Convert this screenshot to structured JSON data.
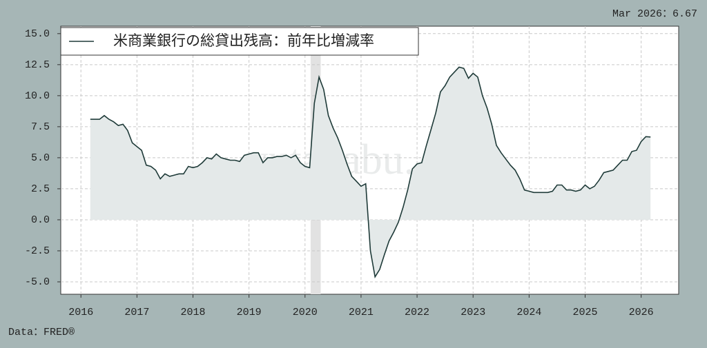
{
  "chart_data": {
    "type": "area-line",
    "annotation": "Mar 2026：6.67",
    "source": "Data：FRED®",
    "watermark": "yutakabu. com",
    "legend": "upper left",
    "grid": true,
    "shaded_regions": [
      [
        2020.1,
        2020.28
      ]
    ],
    "xlim": [
      2015.64,
      2026.67
    ],
    "xticks": [
      2016,
      2017,
      2018,
      2019,
      2020,
      2021,
      2022,
      2023,
      2024,
      2025,
      2026
    ],
    "ylim": [
      -6,
      15.6
    ],
    "yticks": [
      {
        "value": -5,
        "label": "-5.0"
      },
      {
        "value": -2.5,
        "label": "-2.5"
      },
      {
        "value": 0,
        "label": "0.0"
      },
      {
        "value": 2.5,
        "label": "2.5"
      },
      {
        "value": 5,
        "label": "5.0"
      },
      {
        "value": 7.5,
        "label": "7.5"
      },
      {
        "value": 10,
        "label": "10.0"
      },
      {
        "value": 12.5,
        "label": "12.5"
      },
      {
        "value": 15,
        "label": "15.0"
      }
    ],
    "x": [
      2016.167,
      2016.25,
      2016.333,
      2016.417,
      2016.5,
      2016.583,
      2016.667,
      2016.75,
      2016.833,
      2016.917,
      2017,
      2017.083,
      2017.167,
      2017.25,
      2017.333,
      2017.417,
      2017.5,
      2017.583,
      2017.667,
      2017.75,
      2017.833,
      2017.917,
      2018,
      2018.083,
      2018.167,
      2018.25,
      2018.333,
      2018.417,
      2018.5,
      2018.583,
      2018.667,
      2018.75,
      2018.833,
      2018.917,
      2019,
      2019.083,
      2019.167,
      2019.25,
      2019.333,
      2019.417,
      2019.5,
      2019.583,
      2019.667,
      2019.75,
      2019.833,
      2019.917,
      2020,
      2020.083,
      2020.167,
      2020.25,
      2020.333,
      2020.417,
      2020.5,
      2020.583,
      2020.667,
      2020.75,
      2020.833,
      2020.917,
      2021,
      2021.083,
      2021.167,
      2021.25,
      2021.333,
      2021.417,
      2021.5,
      2021.583,
      2021.667,
      2021.75,
      2021.833,
      2021.917,
      2022,
      2022.083,
      2022.167,
      2022.25,
      2022.333,
      2022.417,
      2022.5,
      2022.583,
      2022.667,
      2022.75,
      2022.833,
      2022.917,
      2023,
      2023.083,
      2023.167,
      2023.25,
      2023.333,
      2023.417,
      2023.5,
      2023.583,
      2023.667,
      2023.75,
      2023.833,
      2023.917,
      2024,
      2024.083,
      2024.167,
      2024.25,
      2024.333,
      2024.417,
      2024.5,
      2024.583,
      2024.667,
      2024.75,
      2024.833,
      2024.917,
      2025,
      2025.083,
      2025.167,
      2025.25,
      2025.333,
      2025.417,
      2025.5,
      2025.583,
      2025.667,
      2025.75,
      2025.833,
      2025.917,
      2026,
      2026.083,
      2026.167
    ],
    "series": [
      {
        "name": "米商業銀行の総貸出残高：前年比増減率",
        "color": "#1e3a38",
        "fill": "#e4e9e9",
        "values": [
          8.1,
          8.1,
          8.1,
          8.4,
          8.1,
          7.9,
          7.6,
          7.7,
          7.2,
          6.2,
          5.9,
          5.6,
          4.4,
          4.3,
          4.0,
          3.3,
          3.7,
          3.5,
          3.6,
          3.7,
          3.7,
          4.3,
          4.2,
          4.3,
          4.6,
          5.0,
          4.9,
          5.3,
          5.0,
          4.9,
          4.8,
          4.8,
          4.7,
          5.2,
          5.3,
          5.4,
          5.4,
          4.6,
          5.0,
          5.0,
          5.1,
          5.1,
          5.2,
          5.0,
          5.2,
          4.6,
          4.3,
          4.2,
          9.4,
          11.5,
          10.5,
          8.4,
          7.4,
          6.6,
          5.6,
          4.5,
          3.5,
          3.1,
          2.7,
          2.9,
          -2.5,
          -4.6,
          -4.0,
          -2.8,
          -1.7,
          -1.0,
          -0.2,
          1.0,
          2.4,
          4.1,
          4.5,
          4.6,
          6.0,
          7.3,
          8.6,
          10.3,
          10.8,
          11.5,
          11.9,
          12.3,
          12.2,
          11.4,
          11.8,
          11.5,
          10.0,
          9.0,
          7.7,
          6.0,
          5.4,
          4.9,
          4.4,
          4.0,
          3.3,
          2.4,
          2.3,
          2.2,
          2.2,
          2.2,
          2.2,
          2.3,
          2.8,
          2.8,
          2.4,
          2.4,
          2.3,
          2.4,
          2.8,
          2.5,
          2.7,
          3.2,
          3.8,
          3.9,
          4.0,
          4.4,
          4.8,
          4.8,
          5.5,
          5.6,
          6.3,
          6.7,
          6.67
        ]
      }
    ]
  }
}
